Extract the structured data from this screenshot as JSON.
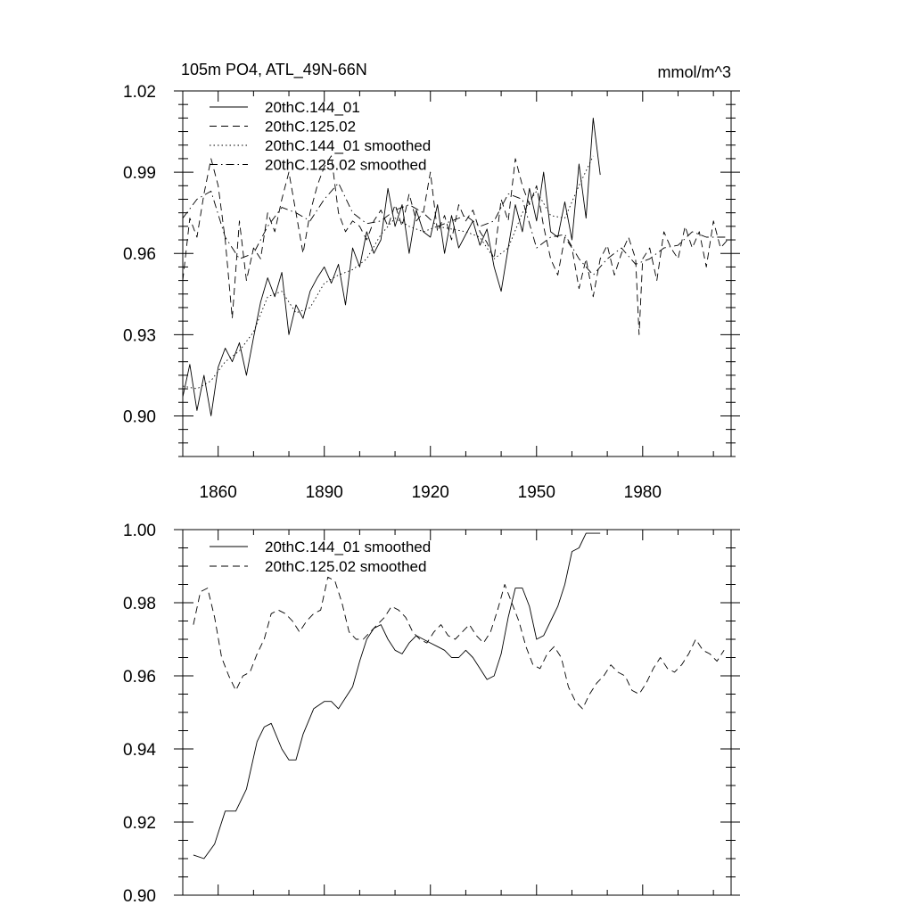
{
  "chart_data": [
    {
      "type": "line",
      "title_left": "105m PO4, ATL_49N-66N",
      "title_right": "mmol/m^3",
      "xlim": [
        1850,
        2005
      ],
      "ylim": [
        0.885,
        1.02
      ],
      "x_ticks": [
        1860,
        1890,
        1920,
        1950,
        1980
      ],
      "x_tick_labels": [
        "1860",
        "1890",
        "1920",
        "1950",
        "1980"
      ],
      "y_ticks": [
        0.9,
        0.93,
        0.96,
        0.99,
        1.02
      ],
      "y_tick_labels": [
        "0.90",
        "0.93",
        "0.96",
        "0.99",
        "1.02"
      ],
      "legend": [
        {
          "label": "20thC.144_01",
          "style": "solid"
        },
        {
          "label": "20thC.125.02",
          "style": "dashed"
        },
        {
          "label": "20thC.144_01 smoothed",
          "style": "dotted"
        },
        {
          "label": "20thC.125.02 smoothed",
          "style": "dashdot"
        }
      ],
      "series": [
        {
          "name": "20thC.144_01",
          "style": "solid",
          "x": [
            1850,
            1852,
            1854,
            1856,
            1858,
            1860,
            1862,
            1864,
            1866,
            1868,
            1870,
            1872,
            1874,
            1876,
            1878,
            1880,
            1882,
            1884,
            1886,
            1888,
            1890,
            1892,
            1894,
            1896,
            1898,
            1900,
            1902,
            1904,
            1906,
            1908,
            1910,
            1912,
            1914,
            1916,
            1918,
            1920,
            1922,
            1924,
            1926,
            1928,
            1930,
            1932,
            1934,
            1936,
            1938,
            1940,
            1942,
            1944,
            1946,
            1948,
            1950,
            1952,
            1954,
            1956,
            1958,
            1960,
            1962,
            1964,
            1966,
            1968
          ],
          "y": [
            0.907,
            0.919,
            0.902,
            0.915,
            0.9,
            0.918,
            0.925,
            0.92,
            0.927,
            0.915,
            0.929,
            0.942,
            0.951,
            0.944,
            0.953,
            0.93,
            0.941,
            0.936,
            0.946,
            0.951,
            0.955,
            0.949,
            0.956,
            0.941,
            0.962,
            0.955,
            0.968,
            0.96,
            0.965,
            0.984,
            0.97,
            0.978,
            0.96,
            0.976,
            0.968,
            0.966,
            0.978,
            0.96,
            0.974,
            0.962,
            0.967,
            0.972,
            0.963,
            0.969,
            0.955,
            0.946,
            0.962,
            0.978,
            0.968,
            0.984,
            0.972,
            0.99,
            0.968,
            0.966,
            0.979,
            0.965,
            0.993,
            0.973,
            1.01,
            0.989
          ]
        },
        {
          "name": "20thC.125.02",
          "style": "dashed",
          "x": [
            1850,
            1852,
            1854,
            1856,
            1858,
            1860,
            1862,
            1864,
            1866,
            1868,
            1870,
            1872,
            1874,
            1876,
            1878,
            1880,
            1882,
            1884,
            1886,
            1888,
            1890,
            1892,
            1894,
            1896,
            1898,
            1900,
            1902,
            1904,
            1906,
            1908,
            1910,
            1912,
            1914,
            1916,
            1918,
            1920,
            1922,
            1924,
            1926,
            1928,
            1930,
            1932,
            1934,
            1936,
            1938,
            1940,
            1942,
            1944,
            1946,
            1948,
            1950,
            1952,
            1954,
            1956,
            1958,
            1960,
            1962,
            1964,
            1966,
            1968,
            1970,
            1972,
            1974,
            1976,
            1978,
            1979,
            1980,
            1982,
            1984,
            1986,
            1988,
            1990,
            1992,
            1994,
            1996,
            1998,
            2000,
            2002,
            2004
          ],
          "y": [
            0.95,
            0.973,
            0.966,
            0.982,
            0.995,
            0.985,
            0.965,
            0.936,
            0.972,
            0.95,
            0.962,
            0.958,
            0.975,
            0.968,
            0.98,
            0.99,
            0.975,
            0.96,
            0.975,
            0.985,
            0.992,
            0.996,
            0.975,
            0.968,
            0.972,
            0.97,
            0.965,
            0.972,
            0.976,
            0.97,
            0.978,
            0.97,
            0.982,
            0.972,
            0.975,
            0.99,
            0.968,
            0.974,
            0.965,
            0.978,
            0.972,
            0.976,
            0.968,
            0.964,
            0.958,
            0.98,
            0.972,
            0.995,
            0.985,
            0.978,
            0.985,
            0.97,
            0.958,
            0.952,
            0.966,
            0.962,
            0.947,
            0.958,
            0.944,
            0.958,
            0.963,
            0.952,
            0.96,
            0.966,
            0.958,
            0.93,
            0.958,
            0.962,
            0.95,
            0.968,
            0.962,
            0.958,
            0.97,
            0.962,
            0.968,
            0.955,
            0.972,
            0.962,
            0.965
          ]
        },
        {
          "name": "20thC.144_01 smoothed",
          "style": "dotted",
          "x": [
            1850,
            1854,
            1858,
            1862,
            1866,
            1870,
            1874,
            1878,
            1882,
            1886,
            1890,
            1894,
            1898,
            1902,
            1906,
            1910,
            1914,
            1918,
            1922,
            1926,
            1930,
            1934,
            1938,
            1942,
            1946,
            1950,
            1954,
            1958,
            1962,
            1966
          ],
          "y": [
            0.911,
            0.91,
            0.913,
            0.92,
            0.924,
            0.931,
            0.944,
            0.946,
            0.938,
            0.94,
            0.949,
            0.952,
            0.954,
            0.958,
            0.967,
            0.973,
            0.97,
            0.968,
            0.97,
            0.969,
            0.968,
            0.966,
            0.958,
            0.962,
            0.975,
            0.983,
            0.974,
            0.973,
            0.985,
            0.996
          ]
        },
        {
          "name": "20thC.125.02 smoothed",
          "style": "dashdot",
          "x": [
            1850,
            1854,
            1858,
            1862,
            1866,
            1870,
            1874,
            1878,
            1882,
            1886,
            1890,
            1894,
            1898,
            1902,
            1906,
            1910,
            1914,
            1918,
            1922,
            1926,
            1930,
            1934,
            1938,
            1942,
            1946,
            1950,
            1954,
            1958,
            1962,
            1966,
            1970,
            1974,
            1978,
            1982,
            1986,
            1990,
            1994,
            1998,
            2002,
            2004
          ],
          "y": [
            0.973,
            0.98,
            0.983,
            0.966,
            0.958,
            0.96,
            0.97,
            0.977,
            0.975,
            0.972,
            0.98,
            0.986,
            0.975,
            0.971,
            0.972,
            0.976,
            0.978,
            0.975,
            0.97,
            0.972,
            0.974,
            0.97,
            0.972,
            0.982,
            0.98,
            0.962,
            0.966,
            0.967,
            0.958,
            0.952,
            0.958,
            0.962,
            0.956,
            0.958,
            0.962,
            0.963,
            0.968,
            0.966,
            0.966,
            0.966
          ]
        }
      ]
    },
    {
      "type": "line",
      "xlim": [
        1850,
        2005
      ],
      "ylim": [
        0.9,
        1.0
      ],
      "y_ticks": [
        0.9,
        0.92,
        0.94,
        0.96,
        0.98,
        1.0
      ],
      "y_tick_labels": [
        "0.90",
        "0.92",
        "0.94",
        "0.96",
        "0.98",
        "1.00"
      ],
      "legend": [
        {
          "label": "20thC.144_01 smoothed",
          "style": "solid"
        },
        {
          "label": "20thC.125.02 smoothed",
          "style": "dashed"
        }
      ],
      "series": [
        {
          "name": "20thC.144_01 smoothed",
          "style": "solid",
          "x": [
            1853,
            1856,
            1859,
            1862,
            1865,
            1868,
            1871,
            1873,
            1875,
            1878,
            1880,
            1882,
            1884,
            1887,
            1890,
            1892,
            1894,
            1896,
            1898,
            1900,
            1902,
            1904,
            1906,
            1908,
            1910,
            1912,
            1914,
            1916,
            1918,
            1920,
            1922,
            1924,
            1926,
            1928,
            1930,
            1932,
            1934,
            1936,
            1938,
            1940,
            1942,
            1944,
            1946,
            1948,
            1950,
            1952,
            1954,
            1956,
            1958,
            1960,
            1962,
            1964,
            1966,
            1968
          ],
          "y": [
            0.911,
            0.91,
            0.914,
            0.923,
            0.923,
            0.929,
            0.942,
            0.946,
            0.947,
            0.94,
            0.937,
            0.937,
            0.944,
            0.951,
            0.953,
            0.953,
            0.951,
            0.954,
            0.957,
            0.964,
            0.97,
            0.973,
            0.974,
            0.97,
            0.967,
            0.966,
            0.969,
            0.971,
            0.97,
            0.969,
            0.968,
            0.967,
            0.965,
            0.965,
            0.967,
            0.965,
            0.962,
            0.959,
            0.96,
            0.966,
            0.976,
            0.984,
            0.984,
            0.979,
            0.97,
            0.971,
            0.975,
            0.979,
            0.985,
            0.994,
            0.995,
            0.999,
            0.999,
            0.999
          ]
        },
        {
          "name": "20thC.125.02 smoothed",
          "style": "dashed",
          "x": [
            1853,
            1855,
            1857,
            1859,
            1861,
            1863,
            1865,
            1867,
            1869,
            1871,
            1873,
            1875,
            1877,
            1879,
            1881,
            1883,
            1885,
            1887,
            1889,
            1891,
            1893,
            1895,
            1897,
            1899,
            1901,
            1903,
            1905,
            1907,
            1909,
            1911,
            1913,
            1915,
            1917,
            1919,
            1921,
            1923,
            1925,
            1927,
            1929,
            1931,
            1933,
            1935,
            1937,
            1939,
            1941,
            1943,
            1945,
            1947,
            1949,
            1951,
            1953,
            1955,
            1957,
            1959,
            1961,
            1963,
            1965,
            1967,
            1969,
            1971,
            1973,
            1975,
            1977,
            1979,
            1981,
            1983,
            1985,
            1987,
            1989,
            1991,
            1993,
            1995,
            1997,
            1999,
            2001,
            2003
          ],
          "y": [
            0.974,
            0.983,
            0.984,
            0.976,
            0.965,
            0.96,
            0.956,
            0.96,
            0.961,
            0.966,
            0.97,
            0.977,
            0.978,
            0.977,
            0.975,
            0.972,
            0.975,
            0.977,
            0.978,
            0.987,
            0.986,
            0.98,
            0.972,
            0.97,
            0.97,
            0.972,
            0.974,
            0.976,
            0.979,
            0.978,
            0.976,
            0.972,
            0.97,
            0.969,
            0.972,
            0.974,
            0.971,
            0.97,
            0.972,
            0.974,
            0.971,
            0.969,
            0.972,
            0.978,
            0.985,
            0.98,
            0.975,
            0.968,
            0.963,
            0.962,
            0.966,
            0.968,
            0.965,
            0.957,
            0.953,
            0.951,
            0.955,
            0.958,
            0.96,
            0.963,
            0.961,
            0.96,
            0.956,
            0.955,
            0.958,
            0.962,
            0.965,
            0.962,
            0.961,
            0.963,
            0.966,
            0.97,
            0.967,
            0.966,
            0.964,
            0.967
          ]
        }
      ]
    }
  ]
}
